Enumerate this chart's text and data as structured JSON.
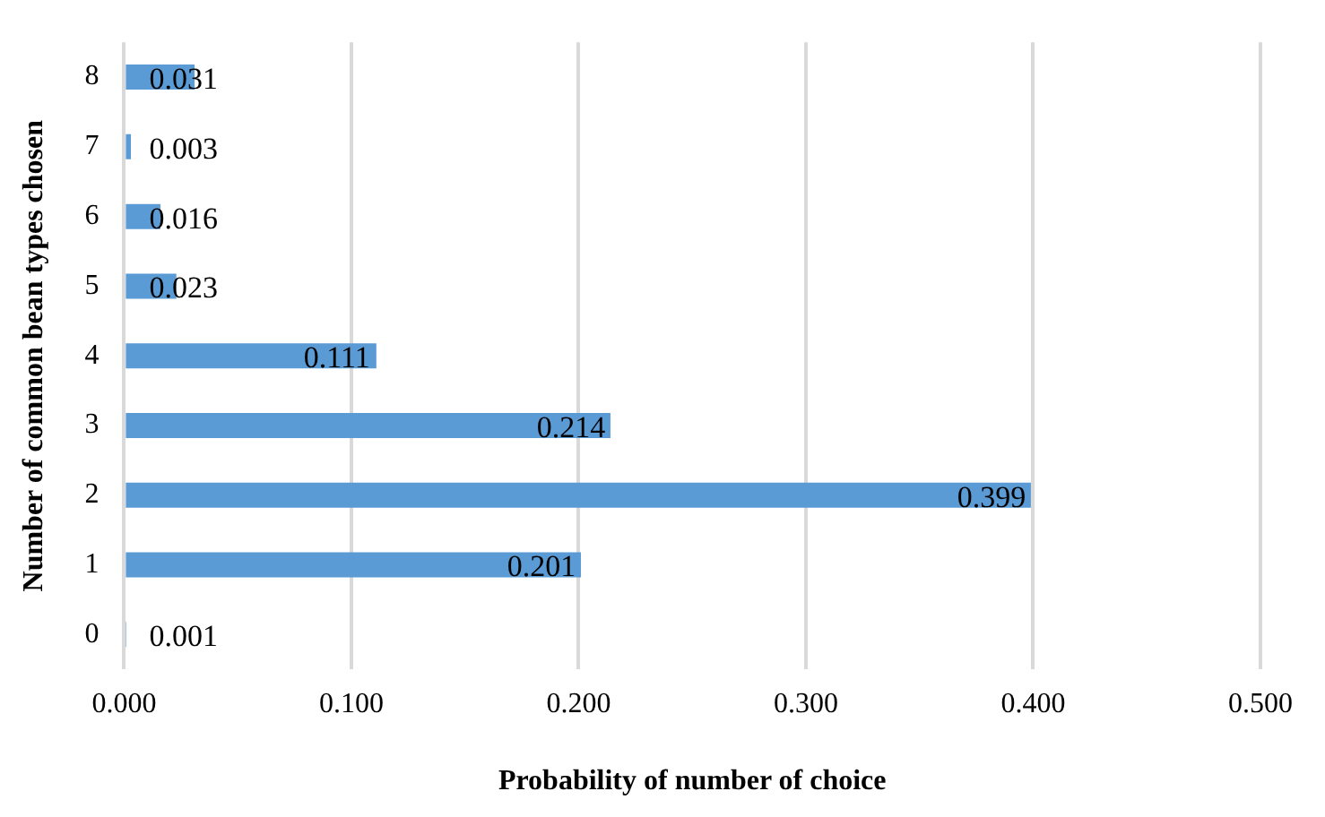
{
  "chart_data": {
    "type": "bar",
    "orientation": "horizontal",
    "xlabel": "Probability of number of choice",
    "ylabel": "Number of common bean types chosen",
    "categories": [
      "8",
      "7",
      "6",
      "5",
      "4",
      "3",
      "2",
      "1",
      "0"
    ],
    "values": [
      0.031,
      0.003,
      0.016,
      0.023,
      0.111,
      0.214,
      0.399,
      0.201,
      0.001
    ],
    "color": "#5b9bd5",
    "xlim": [
      0,
      0.5
    ],
    "xticks": [
      {
        "value": 0,
        "label": "0.000"
      },
      {
        "value": 0.1,
        "label": "0.100"
      },
      {
        "value": 0.2,
        "label": "0.200"
      },
      {
        "value": 0.3,
        "label": "0.300"
      },
      {
        "value": 0.4,
        "label": "0.400"
      },
      {
        "value": 0.5,
        "label": "0.500"
      }
    ],
    "grid": "x",
    "data_labels": true,
    "legend": false
  }
}
